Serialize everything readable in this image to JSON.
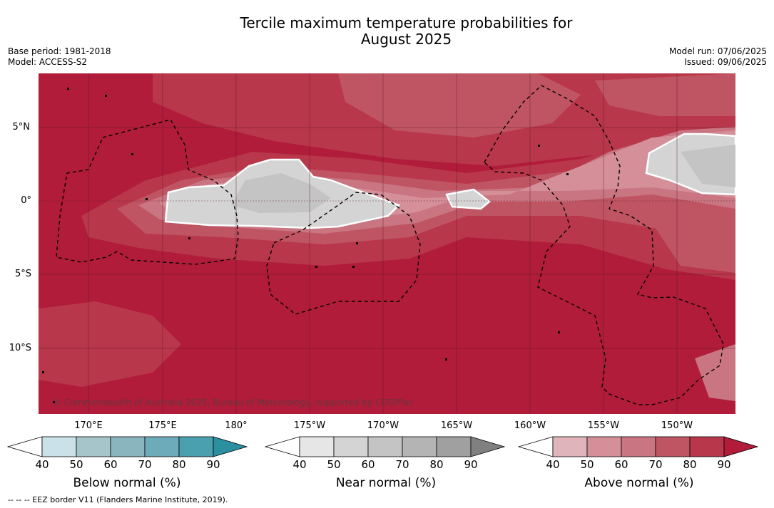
{
  "title_line1": "Tercile maximum temperature probabilities for",
  "title_line2": "August 2025",
  "meta_left": {
    "base_period": "Base period: 1981-2018",
    "model": "Model: ACCESS-S2"
  },
  "meta_right": {
    "model_run": "Model run: 07/06/2025",
    "issued": "Issued: 09/06/2025"
  },
  "latitudes": [
    "5°N",
    "0°",
    "5°S",
    "10°S"
  ],
  "longitudes": [
    "170°E",
    "175°E",
    "180°",
    "175°W",
    "170°W",
    "165°W",
    "160°W",
    "155°W",
    "150°W"
  ],
  "copyright": "© Commonwealth of Australia 2025, Bureau of Meteorology, supported by COSPPac",
  "colorbars": [
    {
      "title": "Below normal (%)",
      "ticks": [
        "40",
        "50",
        "60",
        "70",
        "80",
        "90"
      ],
      "colors": [
        "#c9e1e7",
        "#a6c5cb",
        "#8ab5bf",
        "#6eabba",
        "#4ba0b0",
        "#2c8fa0"
      ]
    },
    {
      "title": "Near normal (%)",
      "ticks": [
        "40",
        "50",
        "60",
        "70",
        "80",
        "90"
      ],
      "colors": [
        "#e6e6e6",
        "#d4d4d4",
        "#c4c4c4",
        "#b4b4b4",
        "#a0a0a0",
        "#808080"
      ]
    },
    {
      "title": "Above normal (%)",
      "ticks": [
        "40",
        "50",
        "60",
        "70",
        "80",
        "90"
      ],
      "colors": [
        "#e0b4bb",
        "#d48f99",
        "#c97582",
        "#bf5563",
        "#b8374a",
        "#b01c3a"
      ]
    }
  ],
  "footer": "--  --  -- EEZ border V11 (Flanders Marine Institute, 2019)."
}
